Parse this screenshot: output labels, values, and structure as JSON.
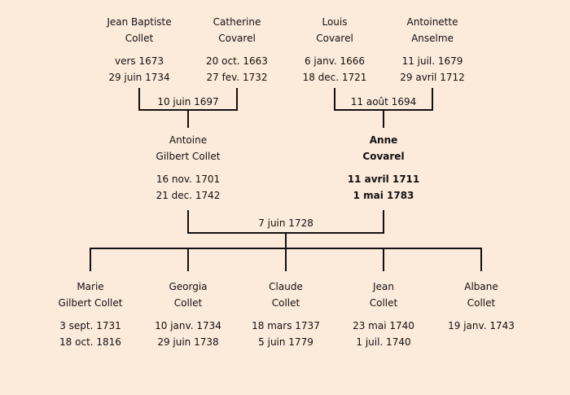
{
  "colors": {
    "background": "#fceadb",
    "lines": "#111111"
  },
  "grandparents": [
    {
      "name1": "Jean Baptiste",
      "name2": "Collet",
      "birth": "vers 1673",
      "death": "29 juin 1734"
    },
    {
      "name1": "Catherine",
      "name2": "Covarel",
      "birth": "20 oct. 1663",
      "death": "27 fev. 1732"
    },
    {
      "name1": "Louis",
      "name2": "Covarel",
      "birth": "6 janv. 1666",
      "death": "18 dec. 1721"
    },
    {
      "name1": "Antoinette",
      "name2": "Anselme",
      "birth": "11 juil. 1679",
      "death": "29 avril 1712"
    }
  ],
  "grandparent_marriages": [
    "10 juin 1697",
    "11 août 1694"
  ],
  "parents": [
    {
      "name1": "Antoine",
      "name2": "Gilbert Collet",
      "birth": "16 nov. 1701",
      "death": "21 dec. 1742"
    },
    {
      "name1": "Anne",
      "name2": "Covarel",
      "birth": "11 avril 1711",
      "death": "1 mai 1783",
      "highlighted": true
    }
  ],
  "parent_marriage": "7 juin 1728",
  "children": [
    {
      "name1": "Marie",
      "name2": "Gilbert Collet",
      "birth": "3 sept. 1731",
      "death": "18 oct. 1816"
    },
    {
      "name1": "Georgia",
      "name2": "Collet",
      "birth": "10 janv. 1734",
      "death": "29 juin 1738"
    },
    {
      "name1": "Claude",
      "name2": "Collet",
      "birth": "18 mars 1737",
      "death": "5 juin 1779"
    },
    {
      "name1": "Jean",
      "name2": "Collet",
      "birth": "23 mai 1740",
      "death": "1 juil. 1740"
    },
    {
      "name1": "Albane",
      "name2": "Collet",
      "birth": "19 janv. 1743",
      "death": ""
    }
  ]
}
